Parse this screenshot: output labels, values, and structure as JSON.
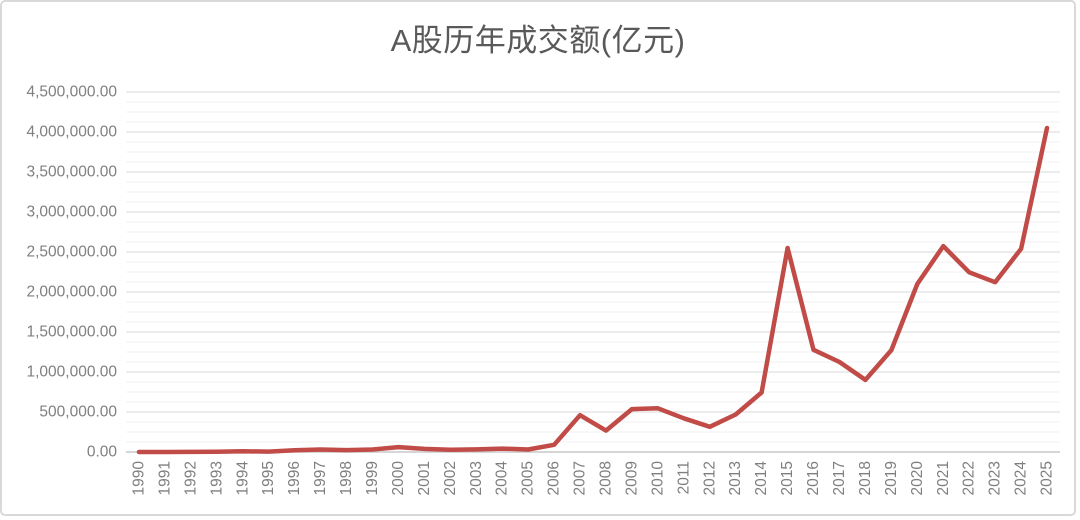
{
  "chart_data": {
    "type": "line",
    "title": "A股历年成交额(亿元)",
    "xlabel": "",
    "ylabel": "",
    "ylim": [
      0,
      4500000
    ],
    "y_major_step": 500000,
    "y_minor_step": 125000,
    "grid": "major-and-minor horizontal",
    "legend_position": "none",
    "y_tick_labels": [
      "0.00",
      "500,000.00",
      "1,000,000.00",
      "1,500,000.00",
      "2,000,000.00",
      "2,500,000.00",
      "3,000,000.00",
      "3,500,000.00",
      "4,000,000.00",
      "4,500,000.00"
    ],
    "categories": [
      "1990",
      "1991",
      "1992",
      "1993",
      "1994",
      "1995",
      "1996",
      "1997",
      "1998",
      "1999",
      "2000",
      "2001",
      "2002",
      "2003",
      "2004",
      "2005",
      "2006",
      "2007",
      "2008",
      "2009",
      "2010",
      "2011",
      "2012",
      "2013",
      "2014",
      "2015",
      "2016",
      "2017",
      "2018",
      "2019",
      "2020",
      "2021",
      "2022",
      "2023",
      "2024",
      "2025"
    ],
    "series": [
      {
        "name": "A股历年成交额",
        "values": [
          12,
          137,
          681,
          3667,
          8127,
          4396,
          21332,
          30722,
          23544,
          31320,
          60827,
          38305,
          27990,
          32115,
          42334,
          31663,
          90469,
          460556,
          267113,
          535987,
          545634,
          421650,
          314667,
          468729,
          743912,
          2550538,
          1277700,
          1124625,
          901739,
          1274169,
          2100000,
          2574273,
          2246248,
          2122000,
          2540000,
          4050000
        ]
      }
    ],
    "colors": {
      "line": "#c04b47",
      "title_text": "#595959",
      "axis_tick_text": "#7f7f7f",
      "major_gridline": "#d9d9d9",
      "minor_gridline": "#f0f0f0",
      "zero_axis_line": "#c8c8c8",
      "card_border": "#d9d9d9",
      "background": "#ffffff"
    }
  }
}
